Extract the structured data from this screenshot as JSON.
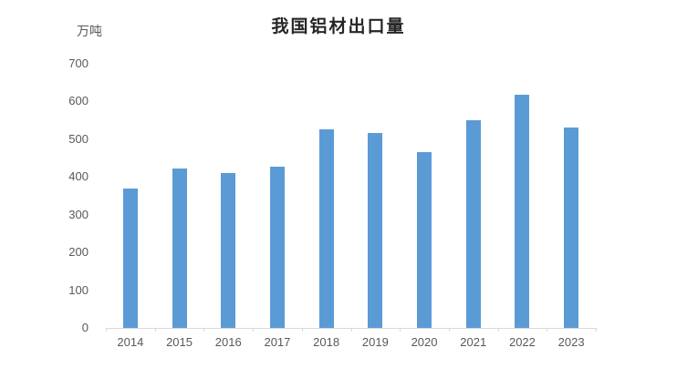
{
  "chart_data": {
    "type": "bar",
    "title": "我国铝材出口量",
    "unit_label": "万吨",
    "categories": [
      "2014",
      "2015",
      "2016",
      "2017",
      "2018",
      "2019",
      "2020",
      "2021",
      "2022",
      "2023"
    ],
    "values": [
      370,
      423,
      411,
      427,
      527,
      517,
      466,
      550,
      619,
      532
    ],
    "xlabel": "",
    "ylabel": "万吨",
    "ylim": [
      0,
      700
    ],
    "ytick_step": 100,
    "ytick_labels": [
      "0",
      "100",
      "200",
      "300",
      "400",
      "500",
      "600",
      "700"
    ],
    "grid": false,
    "legend": null,
    "colors": {
      "bar": "#5B9BD5",
      "axis_line": "#D9D9D9",
      "tick_label": "#595959",
      "title": "#262626"
    }
  }
}
